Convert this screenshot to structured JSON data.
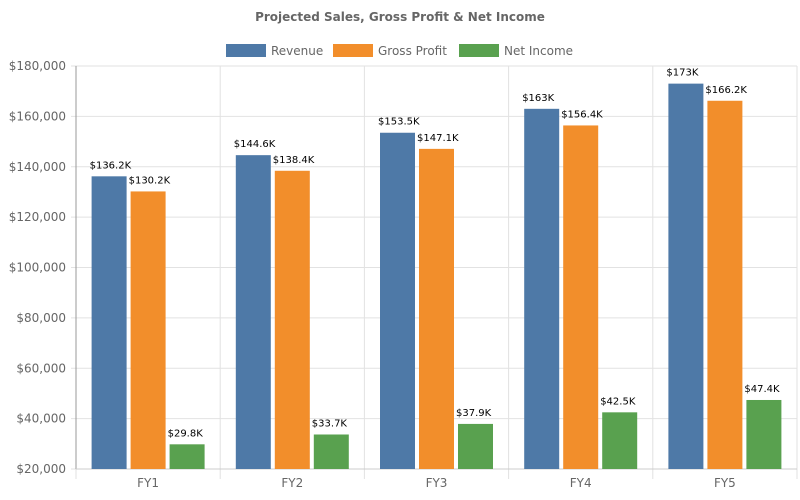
{
  "chart_data": {
    "type": "bar",
    "title": "Projected Sales, Gross Profit & Net Income",
    "xlabel": "",
    "ylabel": "",
    "categories": [
      "FY1",
      "FY2",
      "FY3",
      "FY4",
      "FY5"
    ],
    "ylim": [
      20000,
      180000
    ],
    "yticks": [
      20000,
      40000,
      60000,
      80000,
      100000,
      120000,
      140000,
      160000,
      180000
    ],
    "ytick_labels": [
      "$20,000",
      "$40,000",
      "$60,000",
      "$80,000",
      "$100,000",
      "$120,000",
      "$140,000",
      "$160,000",
      "$180,000"
    ],
    "grid": true,
    "legend_position": "top-center",
    "series": [
      {
        "name": "Revenue",
        "color": "#4e79a7",
        "values": [
          136200,
          144600,
          153500,
          163000,
          173000
        ],
        "labels": [
          "$136.2K",
          "$144.6K",
          "$153.5K",
          "$163K",
          "$173K"
        ]
      },
      {
        "name": "Gross Profit",
        "color": "#f28e2b",
        "values": [
          130200,
          138400,
          147100,
          156400,
          166200
        ],
        "labels": [
          "$130.2K",
          "$138.4K",
          "$147.1K",
          "$156.4K",
          "$166.2K"
        ]
      },
      {
        "name": "Net Income",
        "color": "#59a14f",
        "values": [
          29800,
          33700,
          37900,
          42500,
          47400
        ],
        "labels": [
          "$29.8K",
          "$33.7K",
          "$37.9K",
          "$42.5K",
          "$47.4K"
        ]
      }
    ]
  }
}
